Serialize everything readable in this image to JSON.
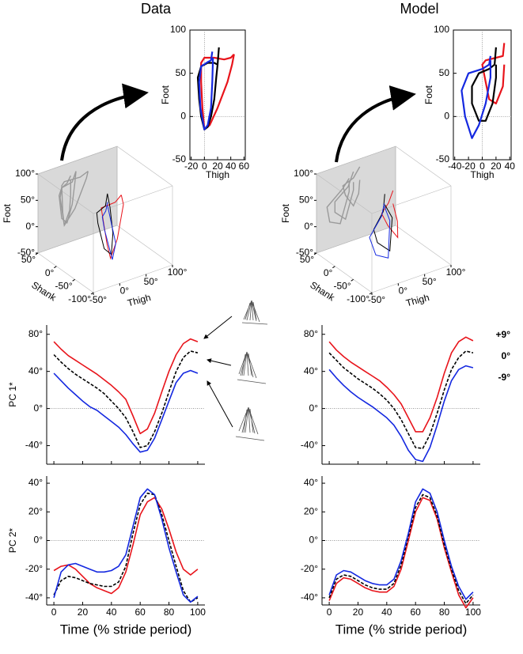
{
  "column_titles": [
    "Data",
    "Model"
  ],
  "chart_data": [
    {
      "type": "line",
      "frame": "box",
      "zero_lines": [
        "x",
        "y"
      ],
      "xlabel": "Thigh",
      "ylabel": "Foot",
      "xlim": [
        -22,
        62
      ],
      "xticks": [
        -20,
        0,
        20,
        40,
        60
      ],
      "ylim": [
        -50,
        100
      ],
      "yticks": [
        -50,
        0,
        50,
        100
      ],
      "series": [
        {
          "color": "#e8141b",
          "x": [
            45,
            40,
            30,
            15,
            0,
            -5,
            -5,
            -3,
            0,
            8,
            20,
            35,
            42,
            45
          ],
          "values": [
            72,
            68,
            66,
            68,
            68,
            62,
            40,
            10,
            -15,
            -10,
            10,
            40,
            60,
            72
          ]
        },
        {
          "color": "#000000",
          "x": [
            22,
            20,
            15,
            5,
            -5,
            -10,
            -8,
            -5,
            0,
            5,
            10,
            15,
            18,
            20
          ],
          "values": [
            80,
            60,
            62,
            62,
            58,
            45,
            20,
            0,
            -15,
            -12,
            0,
            20,
            45,
            60
          ]
        },
        {
          "color": "#1428e0",
          "x": [
            12,
            10,
            5,
            -5,
            -8,
            -6,
            0,
            5,
            10,
            12,
            13
          ],
          "values": [
            75,
            65,
            63,
            58,
            40,
            10,
            -15,
            -10,
            10,
            40,
            68
          ]
        }
      ]
    },
    {
      "type": "line",
      "frame": "box",
      "zero_lines": [
        "x",
        "y"
      ],
      "xlabel": "Thigh",
      "ylabel": "Foot",
      "xlim": [
        -42,
        42
      ],
      "xticks": [
        -40,
        -20,
        0,
        20,
        40
      ],
      "ylim": [
        -50,
        100
      ],
      "yticks": [
        -50,
        0,
        50,
        100
      ],
      "series": [
        {
          "color": "#e8141b",
          "x": [
            32,
            30,
            20,
            5,
            0,
            5,
            10,
            20,
            30,
            32
          ],
          "values": [
            85,
            70,
            68,
            65,
            60,
            40,
            20,
            15,
            35,
            60
          ]
        },
        {
          "color": "#000000",
          "x": [
            20,
            18,
            10,
            -5,
            -15,
            -15,
            -5,
            5,
            15,
            20,
            20
          ],
          "values": [
            80,
            60,
            55,
            50,
            35,
            15,
            -5,
            -5,
            15,
            45,
            60
          ]
        },
        {
          "color": "#1428e0",
          "x": [
            12,
            10,
            0,
            -20,
            -30,
            -25,
            -15,
            -5,
            5,
            12,
            12
          ],
          "values": [
            70,
            60,
            55,
            50,
            30,
            0,
            -25,
            -10,
            15,
            45,
            65
          ]
        }
      ]
    },
    {
      "type": "line3d",
      "xlabel": "Thigh",
      "ylabel": "Foot",
      "zlabel": "Shank",
      "xlim": [
        -50,
        100
      ],
      "xticks": [
        {
          "value": -50,
          "label": "-50°"
        },
        {
          "value": 0,
          "label": "0°"
        },
        {
          "value": 50,
          "label": "50°"
        },
        {
          "value": 100,
          "label": "100°"
        }
      ],
      "ylim": [
        -50,
        100
      ],
      "yticks": [
        {
          "value": -50,
          "label": "-50°"
        },
        {
          "value": 0,
          "label": "0°"
        },
        {
          "value": 50,
          "label": "50°"
        },
        {
          "value": 100,
          "label": "100°"
        }
      ],
      "zlim": [
        -100,
        50
      ],
      "zticks": [
        {
          "value": -100,
          "label": "-100°"
        },
        {
          "value": -50,
          "label": "-50°"
        },
        {
          "value": 0,
          "label": "0°"
        },
        {
          "value": 50,
          "label": "50°"
        }
      ],
      "series": [
        {
          "color": "#e8141b",
          "x": [
            45,
            30,
            0,
            -5,
            -3,
            0,
            20,
            42,
            45
          ],
          "z": [
            -40,
            -45,
            -50,
            -60,
            -70,
            -75,
            -65,
            -50,
            -40
          ],
          "values": [
            72,
            66,
            68,
            62,
            10,
            -15,
            10,
            60,
            72
          ]
        },
        {
          "color": "#000000",
          "x": [
            22,
            15,
            -5,
            -10,
            -5,
            5,
            15,
            20,
            22
          ],
          "z": [
            -35,
            -40,
            -45,
            -55,
            -65,
            -70,
            -60,
            -45,
            -35
          ],
          "values": [
            80,
            62,
            58,
            45,
            0,
            -12,
            20,
            60,
            80
          ]
        },
        {
          "color": "#1428e0",
          "x": [
            12,
            5,
            -5,
            -8,
            0,
            10,
            12,
            12
          ],
          "z": [
            -50,
            -55,
            -60,
            -70,
            -80,
            -75,
            -60,
            -50
          ],
          "values": [
            75,
            63,
            58,
            40,
            -15,
            10,
            40,
            68
          ]
        }
      ]
    },
    {
      "type": "line3d",
      "xlabel": "Thigh",
      "ylabel": "Foot",
      "zlabel": "Shank",
      "xlim": [
        -50,
        100
      ],
      "xticks": [
        {
          "value": -50,
          "label": "-50°"
        },
        {
          "value": 0,
          "label": "0°"
        },
        {
          "value": 50,
          "label": "50°"
        },
        {
          "value": 100,
          "label": "100°"
        }
      ],
      "ylim": [
        -50,
        100
      ],
      "yticks": [
        {
          "value": -50,
          "label": "-50°"
        },
        {
          "value": 0,
          "label": "0°"
        },
        {
          "value": 50,
          "label": "50°"
        },
        {
          "value": 100,
          "label": "100°"
        }
      ],
      "zlim": [
        -100,
        50
      ],
      "zticks": [
        {
          "value": -100,
          "label": "-100°"
        },
        {
          "value": -50,
          "label": "-50°"
        },
        {
          "value": 0,
          "label": "0°"
        },
        {
          "value": 50,
          "label": "50°"
        }
      ],
      "series": [
        {
          "color": "#e8141b",
          "x": [
            32,
            20,
            0,
            5,
            20,
            30,
            32
          ],
          "z": [
            -40,
            -45,
            -55,
            -65,
            -70,
            -55,
            -40
          ],
          "values": [
            85,
            68,
            60,
            40,
            15,
            35,
            60
          ]
        },
        {
          "color": "#000000",
          "x": [
            20,
            10,
            -15,
            -15,
            5,
            20,
            20
          ],
          "z": [
            -35,
            -45,
            -55,
            -65,
            -70,
            -55,
            -35
          ],
          "values": [
            80,
            55,
            35,
            15,
            -5,
            45,
            60
          ]
        },
        {
          "color": "#1428e0",
          "x": [
            12,
            0,
            -30,
            -25,
            -5,
            12,
            12
          ],
          "z": [
            -45,
            -55,
            -65,
            -75,
            -80,
            -60,
            -45
          ],
          "values": [
            70,
            55,
            30,
            0,
            -10,
            45,
            65
          ]
        }
      ]
    },
    {
      "type": "line",
      "frame": "axes",
      "zero_lines": [
        "y"
      ],
      "ylabel": "PC 1*",
      "xtick_labels": false,
      "x": [
        0,
        5,
        10,
        15,
        20,
        25,
        30,
        35,
        40,
        45,
        50,
        55,
        60,
        65,
        70,
        75,
        80,
        85,
        90,
        95,
        100
      ],
      "xlim": [
        -5,
        105
      ],
      "xticks": [
        0,
        20,
        40,
        60,
        80,
        100
      ],
      "ylim": [
        -60,
        90
      ],
      "yticks": [
        {
          "value": -40,
          "label": "-40°"
        },
        {
          "value": 0,
          "label": "0°"
        },
        {
          "value": 40,
          "label": "40°"
        },
        {
          "value": 80,
          "label": "80°"
        }
      ],
      "series": [
        {
          "color": "#e8141b",
          "values": [
            72,
            64,
            57,
            52,
            47,
            42,
            37,
            31,
            25,
            18,
            10,
            -8,
            -27,
            -22,
            -5,
            18,
            40,
            58,
            70,
            75,
            72
          ]
        },
        {
          "color": "#000000",
          "dash": true,
          "values": [
            58,
            50,
            43,
            37,
            32,
            27,
            22,
            16,
            8,
            0,
            -10,
            -25,
            -42,
            -40,
            -25,
            -5,
            18,
            40,
            55,
            62,
            60
          ]
        },
        {
          "color": "#1428e0",
          "values": [
            38,
            30,
            22,
            15,
            8,
            2,
            -2,
            -8,
            -14,
            -20,
            -28,
            -38,
            -47,
            -45,
            -32,
            -12,
            8,
            28,
            38,
            41,
            38
          ]
        }
      ]
    },
    {
      "type": "line",
      "frame": "axes",
      "zero_lines": [
        "y"
      ],
      "xtick_labels": false,
      "legend": "right-outside",
      "x": [
        0,
        5,
        10,
        15,
        20,
        25,
        30,
        35,
        40,
        45,
        50,
        55,
        60,
        65,
        70,
        75,
        80,
        85,
        90,
        95,
        100
      ],
      "xlim": [
        -5,
        105
      ],
      "xticks": [
        0,
        20,
        40,
        60,
        80,
        100
      ],
      "ylim": [
        -60,
        90
      ],
      "yticks": [
        {
          "value": -40,
          "label": "-40°"
        },
        {
          "value": 0,
          "label": "0°"
        },
        {
          "value": 40,
          "label": "40°"
        },
        {
          "value": 80,
          "label": "80°"
        }
      ],
      "series": [
        {
          "name": "+9°",
          "color": "#e8141b",
          "values": [
            72,
            63,
            56,
            50,
            45,
            40,
            35,
            30,
            23,
            15,
            5,
            -10,
            -25,
            -25,
            -10,
            12,
            38,
            60,
            72,
            77,
            73
          ]
        },
        {
          "name": "0°",
          "color": "#000000",
          "dash": true,
          "values": [
            60,
            52,
            44,
            38,
            32,
            27,
            22,
            16,
            9,
            0,
            -12,
            -27,
            -42,
            -43,
            -28,
            -5,
            20,
            42,
            55,
            62,
            60
          ]
        },
        {
          "name": "-9°",
          "color": "#1428e0",
          "values": [
            42,
            33,
            25,
            18,
            12,
            7,
            2,
            -4,
            -10,
            -18,
            -30,
            -45,
            -55,
            -57,
            -42,
            -18,
            8,
            30,
            42,
            46,
            44
          ]
        }
      ]
    },
    {
      "type": "line",
      "frame": "axes",
      "zero_lines": [
        "y"
      ],
      "ylabel": "PC 2*",
      "xlabel": "Time (% stride period)",
      "x": [
        0,
        5,
        10,
        15,
        20,
        25,
        30,
        35,
        40,
        45,
        50,
        55,
        60,
        65,
        70,
        75,
        80,
        85,
        90,
        95,
        100
      ],
      "xlim": [
        -5,
        105
      ],
      "xticks": [
        0,
        20,
        40,
        60,
        80,
        100
      ],
      "ylim": [
        -45,
        45
      ],
      "yticks": [
        {
          "value": -40,
          "label": "-40°"
        },
        {
          "value": -20,
          "label": "-20°"
        },
        {
          "value": 0,
          "label": "0°"
        },
        {
          "value": 20,
          "label": "20°"
        },
        {
          "value": 40,
          "label": "40°"
        }
      ],
      "series": [
        {
          "color": "#e8141b",
          "values": [
            -21,
            -18,
            -17,
            -20,
            -25,
            -30,
            -33,
            -35,
            -37,
            -33,
            -22,
            -3,
            18,
            27,
            30,
            22,
            8,
            -8,
            -20,
            -24,
            -20
          ]
        },
        {
          "color": "#000000",
          "dash": true,
          "values": [
            -38,
            -28,
            -25,
            -26,
            -28,
            -30,
            -31,
            -32,
            -32,
            -29,
            -18,
            5,
            25,
            33,
            32,
            18,
            0,
            -18,
            -35,
            -43,
            -40
          ]
        },
        {
          "color": "#1428e0",
          "values": [
            -40,
            -22,
            -17,
            -16,
            -18,
            -20,
            -22,
            -22,
            -21,
            -18,
            -10,
            10,
            30,
            36,
            32,
            15,
            -5,
            -22,
            -38,
            -43,
            -39
          ]
        }
      ]
    },
    {
      "type": "line",
      "frame": "axes",
      "zero_lines": [
        "y"
      ],
      "xlabel": "Time (% stride period)",
      "x": [
        0,
        5,
        10,
        15,
        20,
        25,
        30,
        35,
        40,
        45,
        50,
        55,
        60,
        65,
        70,
        75,
        80,
        85,
        90,
        95,
        100
      ],
      "xlim": [
        -5,
        105
      ],
      "xticks": [
        0,
        20,
        40,
        60,
        80,
        100
      ],
      "ylim": [
        -45,
        45
      ],
      "yticks": [
        {
          "value": -40,
          "label": "-40°"
        },
        {
          "value": -20,
          "label": "-20°"
        },
        {
          "value": 0,
          "label": "0°"
        },
        {
          "value": 20,
          "label": "20°"
        },
        {
          "value": 40,
          "label": "40°"
        }
      ],
      "series": [
        {
          "color": "#e8141b",
          "values": [
            -42,
            -30,
            -26,
            -27,
            -30,
            -33,
            -35,
            -36,
            -36,
            -32,
            -20,
            0,
            20,
            30,
            28,
            15,
            -5,
            -22,
            -38,
            -47,
            -40
          ]
        },
        {
          "color": "#000000",
          "dash": true,
          "values": [
            -40,
            -27,
            -24,
            -25,
            -28,
            -31,
            -33,
            -34,
            -34,
            -30,
            -17,
            3,
            23,
            32,
            30,
            17,
            -3,
            -20,
            -35,
            -44,
            -38
          ]
        },
        {
          "color": "#1428e0",
          "values": [
            -38,
            -24,
            -21,
            -22,
            -25,
            -28,
            -30,
            -31,
            -31,
            -27,
            -14,
            5,
            27,
            36,
            33,
            20,
            0,
            -18,
            -32,
            -41,
            -36
          ]
        }
      ]
    }
  ]
}
